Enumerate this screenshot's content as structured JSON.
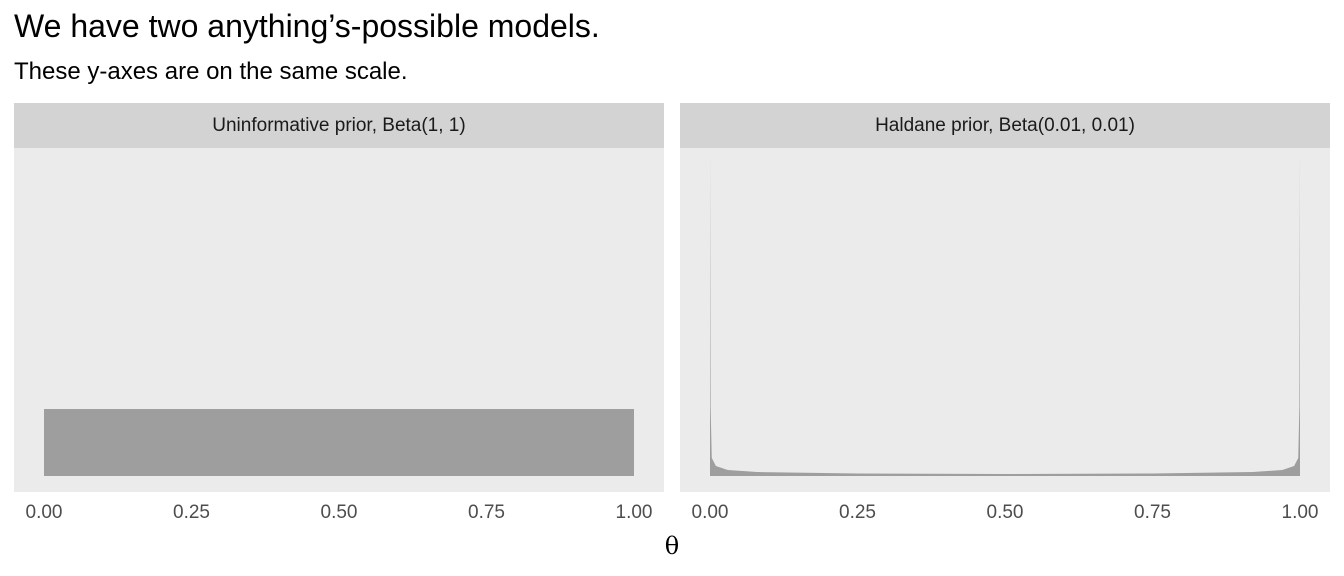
{
  "title": "We have two anything’s-possible models.",
  "subtitle": "These y-axes are on the same scale.",
  "xlabel": "θ",
  "tick_labels": [
    "0.00",
    "0.25",
    "0.50",
    "0.75",
    "1.00"
  ],
  "fill_color": "#9e9e9e",
  "panel_bg": "#ebebeb",
  "strip_bg": "#d3d3d3",
  "chart_data": [
    {
      "type": "area",
      "facet": "Uninformative prior, Beta(1, 1)",
      "distribution": "beta",
      "alpha": 1,
      "beta": 1,
      "x": [
        0,
        0.25,
        0.5,
        0.75,
        1
      ],
      "y": [
        1,
        1,
        1,
        1,
        1
      ],
      "xlim": [
        0,
        1
      ],
      "ylim_shared": true,
      "y_axis_visible": false
    },
    {
      "type": "area",
      "facet": "Haldane prior, Beta(0.01, 0.01)",
      "distribution": "beta",
      "alpha": 0.01,
      "beta": 0.01,
      "x": [
        0.0001,
        0.001,
        0.005,
        0.01,
        0.02,
        0.05,
        0.1,
        0.25,
        0.5,
        0.75,
        0.9,
        0.95,
        0.98,
        0.99,
        0.995,
        0.999,
        0.9999
      ],
      "y": [
        5.0,
        0.054,
        0.0125,
        0.0115,
        0.0107,
        0.0104,
        0.0088,
        0.0076,
        0.0071,
        0.0076,
        0.0088,
        0.0104,
        0.0107,
        0.0115,
        0.0125,
        0.054,
        5.0
      ],
      "xlim": [
        0,
        1
      ],
      "ylim_shared": true,
      "y_axis_visible": false
    }
  ]
}
